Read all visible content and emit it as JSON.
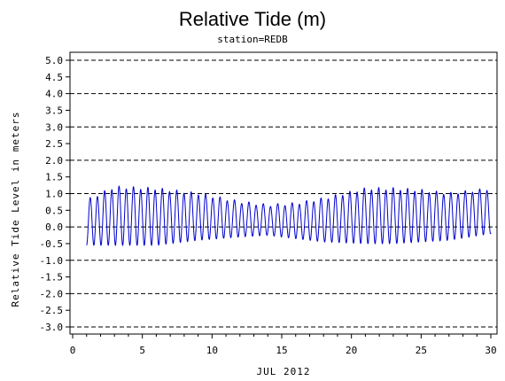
{
  "chart_data": {
    "type": "line",
    "title": "Relative Tide (m)",
    "subtitle": "station=REDB",
    "xlabel": "JUL 2012",
    "ylabel": "Relative Tide Level in meters",
    "xlim": [
      0,
      30
    ],
    "ylim": [
      -3.0,
      5.0
    ],
    "x_ticks": [
      0,
      5,
      10,
      15,
      20,
      25,
      30
    ],
    "x_tick_labels": [
      "0",
      "5",
      "10",
      "15",
      "20",
      "25",
      "30"
    ],
    "y_ticks": [
      5.0,
      4.5,
      4.0,
      3.5,
      3.0,
      2.5,
      2.0,
      1.5,
      1.0,
      0.5,
      0.0,
      -0.5,
      -1.0,
      -1.5,
      -2.0,
      -2.5,
      -3.0
    ],
    "y_tick_labels": [
      "5.0",
      "4.5",
      "4.0",
      "3.5",
      "3.0",
      "2.5",
      "2.0",
      "1.5",
      "1.0",
      "0.5",
      "0.0",
      "-0.5",
      "-1.0",
      "-1.5",
      "-2.0",
      "-2.5",
      "-3.0"
    ],
    "grid_lines_y": [
      5,
      4,
      3,
      2,
      1,
      0,
      -1,
      -2,
      -3
    ],
    "grid": "dashed horizontal at whole meters",
    "series": [
      {
        "color": "#0000cc",
        "x_range": [
          1.0,
          30.0
        ],
        "description_values": "semidiurnal tide, period ~0.5 day",
        "cycle_period_days": 0.5175,
        "amplitude_profile": [
          {
            "x": 1,
            "high": 0.8,
            "low": -0.55
          },
          {
            "x": 3,
            "high": 1.2,
            "low": -0.55
          },
          {
            "x": 6,
            "high": 1.15,
            "low": -0.55
          },
          {
            "x": 9,
            "high": 1.0,
            "low": -0.4
          },
          {
            "x": 12,
            "high": 0.75,
            "low": -0.3
          },
          {
            "x": 14,
            "high": 0.65,
            "low": -0.25
          },
          {
            "x": 16,
            "high": 0.7,
            "low": -0.35
          },
          {
            "x": 18,
            "high": 0.85,
            "low": -0.45
          },
          {
            "x": 21,
            "high": 1.15,
            "low": -0.5
          },
          {
            "x": 23,
            "high": 1.15,
            "low": -0.5
          },
          {
            "x": 25,
            "high": 1.1,
            "low": -0.45
          },
          {
            "x": 27,
            "high": 1.0,
            "low": -0.4
          },
          {
            "x": 30,
            "high": 1.15,
            "low": -0.2
          }
        ]
      }
    ]
  }
}
